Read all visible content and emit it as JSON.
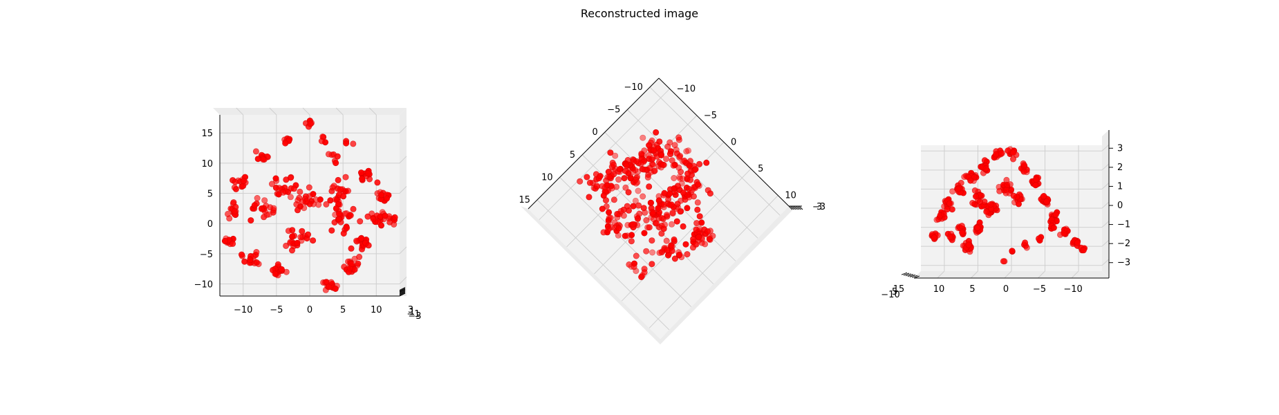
{
  "chart_data": {
    "title": "Reconstructed image",
    "colors": {
      "points": "#ff0000",
      "pane": "#f2f2f2",
      "grid": "#cfcfcf"
    },
    "panels": [
      {
        "type": "scatter",
        "view": "top",
        "x_ticks": [
          "−10",
          "−5",
          "0",
          "5",
          "10"
        ],
        "y_ticks": [
          "15",
          "10",
          "5",
          "0",
          "−5",
          "−10"
        ],
        "z_ticks": [
          "3",
          "1",
          "−1",
          "−3"
        ],
        "xlim": [
          -13.5,
          13.5
        ],
        "ylim": [
          -12,
          18
        ],
        "grid": true
      },
      {
        "type": "scatter",
        "view": "diagonal",
        "x_ticks": [
          "−10",
          "−5",
          "0",
          "5",
          "10",
          "15"
        ],
        "y_ticks": [
          "−10",
          "−5",
          "0",
          "5",
          "10"
        ],
        "z_ticks": [
          "−3",
          "3"
        ],
        "xlim": [
          -12,
          17
        ],
        "ylim": [
          -12,
          12
        ],
        "grid": true
      },
      {
        "type": "scatter",
        "view": "side",
        "x_ticks": [
          "10",
          "5",
          "0",
          "−5",
          "−10"
        ],
        "z_ticks": [
          "3",
          "2",
          "1",
          "0",
          "−1",
          "−2",
          "−3"
        ],
        "y_ticks": [
          "−10",
          "5",
          "15"
        ],
        "xlim": [
          13.5,
          -13.5
        ],
        "zlim": [
          -3.3,
          3.3
        ],
        "grid": true
      }
    ]
  }
}
